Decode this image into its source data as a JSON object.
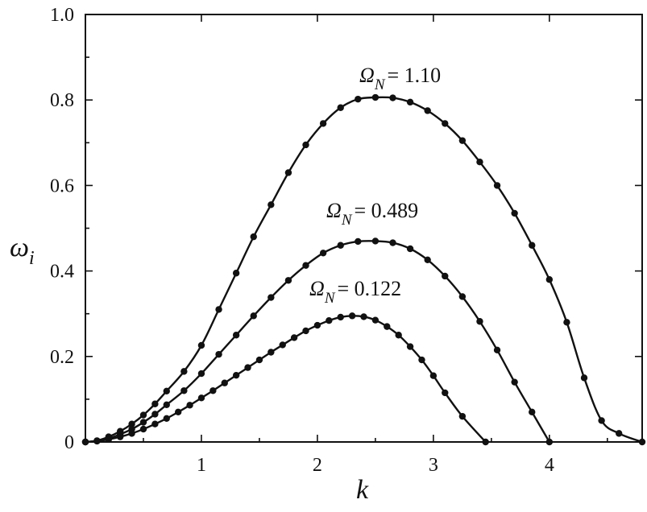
{
  "chart_data": {
    "type": "line",
    "xlabel": "k",
    "ylabel": "ω",
    "ylabel_sub": "i",
    "xlim": [
      0,
      4.8
    ],
    "ylim": [
      0,
      1.0
    ],
    "xticks": [
      1,
      2,
      3,
      4
    ],
    "xtick_labels": [
      "1",
      "2",
      "3",
      "4"
    ],
    "yticks": [
      0,
      0.2,
      0.4,
      0.6,
      0.8,
      1.0
    ],
    "ytick_labels": [
      "0",
      "0.2",
      "0.4",
      "0.6",
      "0.8",
      "1.0"
    ],
    "grid": false,
    "series": [
      {
        "label_symbol": "Ω",
        "label_sub": "N",
        "label_value": "= 1.10",
        "x": [
          0,
          0.1,
          0.2,
          0.3,
          0.4,
          0.5,
          0.6,
          0.7,
          0.85,
          1.0,
          1.15,
          1.3,
          1.45,
          1.6,
          1.75,
          1.9,
          2.05,
          2.2,
          2.35,
          2.5,
          2.65,
          2.8,
          2.95,
          3.1,
          3.25,
          3.4,
          3.55,
          3.7,
          3.85,
          4.0,
          4.15,
          4.3,
          4.45,
          4.6,
          4.8
        ],
        "y": [
          0,
          0.003,
          0.012,
          0.025,
          0.042,
          0.063,
          0.089,
          0.119,
          0.165,
          0.226,
          0.31,
          0.395,
          0.48,
          0.555,
          0.63,
          0.695,
          0.745,
          0.782,
          0.802,
          0.806,
          0.805,
          0.795,
          0.775,
          0.745,
          0.705,
          0.655,
          0.6,
          0.535,
          0.46,
          0.38,
          0.28,
          0.15,
          0.05,
          0.02,
          0
        ]
      },
      {
        "label_symbol": "Ω",
        "label_sub": "N",
        "label_value": "= 0.489",
        "x": [
          0,
          0.1,
          0.2,
          0.3,
          0.4,
          0.5,
          0.6,
          0.7,
          0.85,
          1.0,
          1.15,
          1.3,
          1.45,
          1.6,
          1.75,
          1.9,
          2.05,
          2.2,
          2.35,
          2.5,
          2.65,
          2.8,
          2.95,
          3.1,
          3.25,
          3.4,
          3.55,
          3.7,
          3.85,
          4.0
        ],
        "y": [
          0,
          0.002,
          0.008,
          0.018,
          0.03,
          0.046,
          0.065,
          0.087,
          0.12,
          0.16,
          0.205,
          0.25,
          0.295,
          0.338,
          0.378,
          0.413,
          0.442,
          0.46,
          0.469,
          0.47,
          0.466,
          0.452,
          0.426,
          0.388,
          0.34,
          0.282,
          0.215,
          0.14,
          0.07,
          0
        ]
      },
      {
        "label_symbol": "Ω",
        "label_sub": "N",
        "label_value": "= 0.122",
        "x": [
          0,
          0.1,
          0.2,
          0.3,
          0.4,
          0.5,
          0.6,
          0.7,
          0.8,
          0.9,
          1.0,
          1.1,
          1.2,
          1.3,
          1.4,
          1.5,
          1.6,
          1.7,
          1.8,
          1.9,
          2.0,
          2.1,
          2.2,
          2.3,
          2.4,
          2.5,
          2.6,
          2.7,
          2.8,
          2.9,
          3.0,
          3.1,
          3.25,
          3.45
        ],
        "y": [
          0,
          0.002,
          0.006,
          0.012,
          0.02,
          0.03,
          0.042,
          0.055,
          0.07,
          0.086,
          0.103,
          0.12,
          0.138,
          0.156,
          0.174,
          0.192,
          0.21,
          0.227,
          0.244,
          0.26,
          0.273,
          0.284,
          0.292,
          0.295,
          0.293,
          0.285,
          0.27,
          0.25,
          0.223,
          0.192,
          0.155,
          0.115,
          0.06,
          0
        ]
      }
    ]
  }
}
